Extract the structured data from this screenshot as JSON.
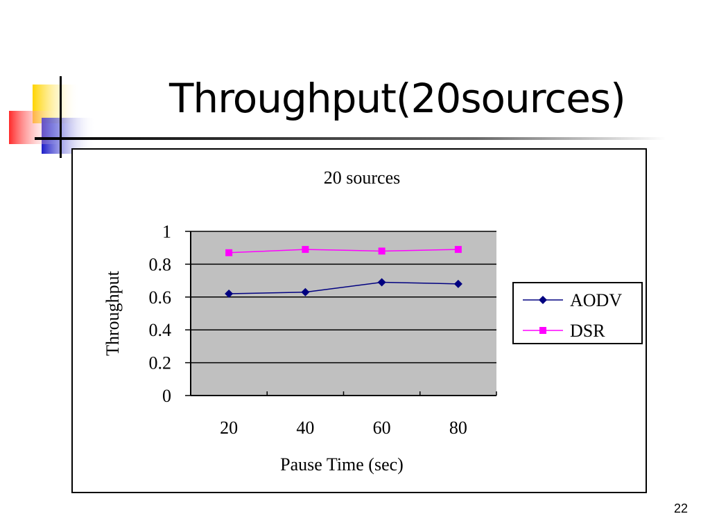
{
  "slide": {
    "title": "Throughput(20sources)",
    "page_number": "22"
  },
  "chart_data": {
    "type": "line",
    "title": "20 sources",
    "xlabel": "Pause Time (sec)",
    "ylabel": "Throughput",
    "categories": [
      "20",
      "40",
      "60",
      "80"
    ],
    "yticks": [
      "0",
      "0.2",
      "0.4",
      "0.6",
      "0.8",
      "1"
    ],
    "ylim": [
      0,
      1
    ],
    "grid": true,
    "plot_background": "#c0c0c0",
    "legend_position": "right",
    "series": [
      {
        "name": "AODV",
        "values": [
          0.62,
          0.63,
          0.69,
          0.68
        ],
        "color": "#000080",
        "marker": "diamond"
      },
      {
        "name": "DSR",
        "values": [
          0.87,
          0.89,
          0.88,
          0.89
        ],
        "color": "#ff00ff",
        "marker": "square"
      }
    ]
  },
  "colors": {
    "deco_yellow": "#ffd700",
    "deco_red": "#ff3b3b",
    "deco_blue": "#2a2ad0"
  }
}
